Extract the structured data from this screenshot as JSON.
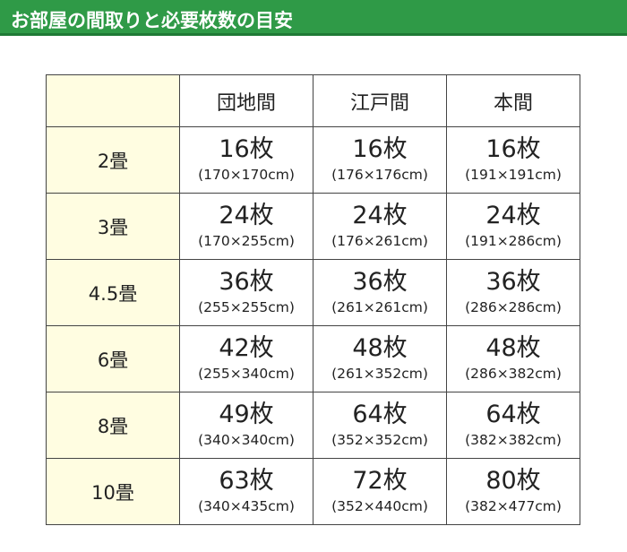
{
  "header": {
    "title": "お部屋の間取りと必要枚数の目安"
  },
  "table": {
    "columns": [
      "団地間",
      "江戸間",
      "本間"
    ],
    "rows": [
      {
        "label": "2畳",
        "cells": [
          {
            "count": "16枚",
            "size": "(170×170cm)"
          },
          {
            "count": "16枚",
            "size": "(176×176cm)"
          },
          {
            "count": "16枚",
            "size": "(191×191cm)"
          }
        ]
      },
      {
        "label": "3畳",
        "cells": [
          {
            "count": "24枚",
            "size": "(170×255cm)"
          },
          {
            "count": "24枚",
            "size": "(176×261cm)"
          },
          {
            "count": "24枚",
            "size": "(191×286cm)"
          }
        ]
      },
      {
        "label": "4.5畳",
        "cells": [
          {
            "count": "36枚",
            "size": "(255×255cm)"
          },
          {
            "count": "36枚",
            "size": "(261×261cm)"
          },
          {
            "count": "36枚",
            "size": "(286×286cm)"
          }
        ]
      },
      {
        "label": "6畳",
        "cells": [
          {
            "count": "42枚",
            "size": "(255×340cm)"
          },
          {
            "count": "48枚",
            "size": "(261×352cm)"
          },
          {
            "count": "48枚",
            "size": "(286×382cm)"
          }
        ]
      },
      {
        "label": "8畳",
        "cells": [
          {
            "count": "49枚",
            "size": "(340×340cm)"
          },
          {
            "count": "64枚",
            "size": "(352×352cm)"
          },
          {
            "count": "64枚",
            "size": "(382×382cm)"
          }
        ]
      },
      {
        "label": "10畳",
        "cells": [
          {
            "count": "63枚",
            "size": "(340×435cm)"
          },
          {
            "count": "72枚",
            "size": "(352×440cm)"
          },
          {
            "count": "80枚",
            "size": "(382×477cm)"
          }
        ]
      }
    ]
  }
}
